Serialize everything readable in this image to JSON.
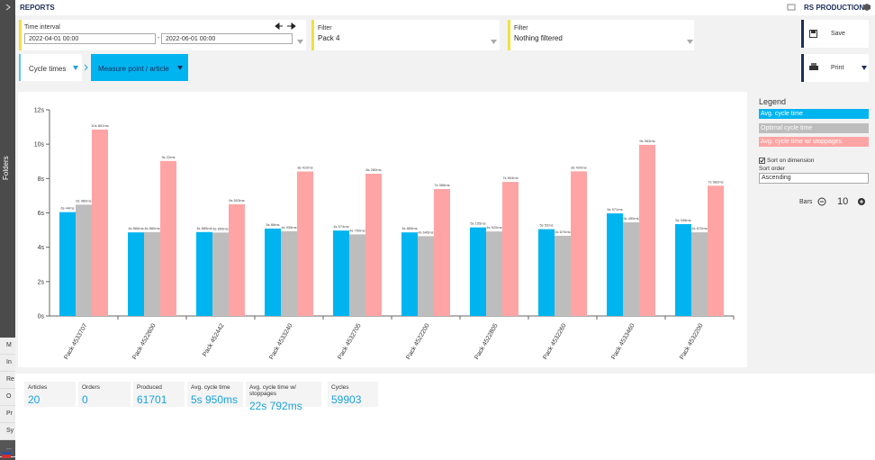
{
  "header": {
    "title": "REPORTS",
    "company": "RS PRODUCTION"
  },
  "sidebar": {
    "label": "Folders",
    "menu": [
      "M",
      "In",
      "Re",
      "O",
      "Pr",
      "Sy",
      "..."
    ]
  },
  "filters": {
    "time_interval": {
      "label": "Time interval",
      "from": "2022-04-01 00:00",
      "separator": "-",
      "to": "2022-06-01 00:00"
    },
    "filter1": {
      "label": "Filter",
      "value": "Pack 4"
    },
    "filter2": {
      "label": "Filter",
      "value": "Nothing filtered"
    }
  },
  "actions": {
    "save": "Save",
    "print": "Print"
  },
  "tabs": {
    "first": "Cycle times",
    "second": "Measure point / article"
  },
  "chart_data": {
    "type": "bar",
    "categories": [
      "Pack 4533707",
      "Pack 4522600",
      "Pack 452442",
      "Pack 4533240",
      "Pack 4532705",
      "Pack 4522200",
      "Pack 4522805",
      "Pack 4532260",
      "Pack 4533460",
      "Pack 4532200"
    ],
    "series": [
      {
        "name": "Avg. cycle time",
        "color": "#00b4f0",
        "values": [
          6.044,
          4.866,
          4.885,
          5.088,
          4.974,
          4.865,
          5.155,
          5.052,
          5.971,
          5.348
        ],
        "value_labels": [
          "6s 44ms",
          "4s 866ms",
          "4s 885ms",
          "5s 88ms",
          "4s 974ms",
          "4s 865ms",
          "5s 155ms",
          "5s 52ms",
          "5s 971ms",
          "5s 348ms"
        ]
      },
      {
        "name": "Optimal cycle time",
        "color": "#bdbdbd",
        "values": [
          6.48,
          4.88,
          4.855,
          4.935,
          4.75,
          4.645,
          4.92,
          4.67,
          5.45,
          4.87
        ],
        "value_labels": [
          "6s 480ms",
          "4s 880ms",
          "4s 855ms",
          "4s 935ms",
          "4s 750ms",
          "4s 645ms",
          "4s 920ms",
          "4s 670ms",
          "5s 450ms",
          "4s 870ms"
        ]
      },
      {
        "name": "Avg. cycle time w/ stoppages",
        "color": "#ffa4a4",
        "values": [
          10.851,
          9.022,
          6.503,
          8.41,
          8.28,
          7.388,
          7.804,
          8.42,
          9.963,
          7.582
        ],
        "value_labels": [
          "10s 851ms",
          "9s 22ms",
          "6s 503ms",
          "8s 410ms",
          "8s 280ms",
          "7s 388ms",
          "7s 804ms",
          "8s 420ms",
          "9s 963ms",
          "7s 582ms"
        ]
      }
    ],
    "ylim": [
      0,
      12
    ],
    "yticks": [
      {
        "value": 0,
        "label": "0s"
      },
      {
        "value": 2,
        "label": "2s"
      },
      {
        "value": 4,
        "label": "4s"
      },
      {
        "value": 6,
        "label": "6s"
      },
      {
        "value": 8,
        "label": "8s"
      },
      {
        "value": 10,
        "label": "10s"
      },
      {
        "value": 12,
        "label": "12s"
      }
    ],
    "grid": false
  },
  "panel": {
    "legend_title": "Legend",
    "sort_on_dimension": "Sort on dimension",
    "sort_on_dimension_checked": true,
    "sort_order_label": "Sort order",
    "sort_order": "Ascending",
    "bars_label": "Bars",
    "bars_count": 10
  },
  "kpis": [
    {
      "label": "Articles",
      "value": "20"
    },
    {
      "label": "Orders",
      "value": "0"
    },
    {
      "label": "Produced",
      "value": "61701"
    },
    {
      "label": "Avg. cycle time",
      "value": "5s 950ms"
    },
    {
      "label": "Avg. cycle time w/ stoppages",
      "value": "22s 792ms"
    },
    {
      "label": "Cycles",
      "value": "59903"
    }
  ]
}
